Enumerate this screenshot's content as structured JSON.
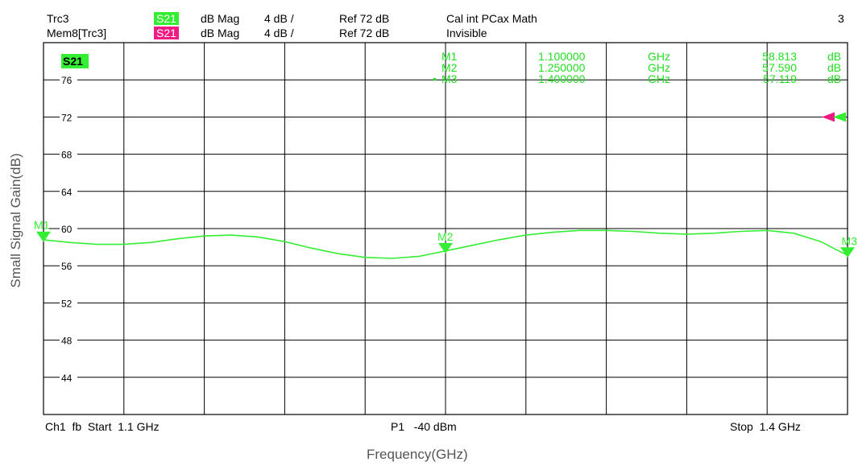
{
  "header": {
    "row1": {
      "trace": "Trc3",
      "param": "S21",
      "format": "dB Mag",
      "scale": "4 dB /",
      "ref": "Ref 72 dB",
      "status": "Cal int PCax Math",
      "channel_num": "3"
    },
    "row2": {
      "trace": "Mem8[Trc3]",
      "param": "S21",
      "format": "dB Mag",
      "scale": "4 dB /",
      "ref": "Ref 72 dB",
      "status": "Invisible"
    }
  },
  "colors": {
    "trace": "#33ee33",
    "memory": "#ee1b84",
    "grid": "#000000",
    "marker_text": "#22dd22"
  },
  "footer": {
    "left": "Ch1  fb  Start  1.1 GHz",
    "center": "P1   -40 dBm",
    "right": "Stop  1.4 GHz"
  },
  "chart_data": {
    "type": "line",
    "trace_label": "S21",
    "ylabel": "Small Signal Gain(dB)",
    "xlabel": "Frequency(GHz)",
    "xlim": [
      1.1,
      1.4
    ],
    "ylim": [
      40,
      80
    ],
    "yticks": [
      76,
      72,
      68,
      64,
      60,
      56,
      52,
      48,
      44
    ],
    "ref_level": 72,
    "grid": true,
    "series": [
      {
        "x": [
          1.1,
          1.11,
          1.12,
          1.13,
          1.14,
          1.15,
          1.16,
          1.17,
          1.18,
          1.19,
          1.2,
          1.21,
          1.22,
          1.23,
          1.24,
          1.25,
          1.26,
          1.27,
          1.28,
          1.29,
          1.3,
          1.31,
          1.32,
          1.33,
          1.34,
          1.35,
          1.36,
          1.37,
          1.38,
          1.39,
          1.4
        ],
        "values": [
          58.8,
          58.5,
          58.3,
          58.3,
          58.5,
          58.9,
          59.2,
          59.3,
          59.1,
          58.6,
          57.9,
          57.3,
          56.9,
          56.8,
          57.0,
          57.59,
          58.2,
          58.8,
          59.3,
          59.6,
          59.8,
          59.8,
          59.7,
          59.5,
          59.4,
          59.5,
          59.7,
          59.8,
          59.5,
          58.6,
          57.12
        ]
      }
    ],
    "markers": [
      {
        "id": "M1",
        "freq": "1.100000",
        "unit": "GHz",
        "value": "58.813",
        "value_unit": "dB",
        "x": 1.1,
        "y": 58.813,
        "active": false
      },
      {
        "id": "M2",
        "freq": "1.250000",
        "unit": "GHz",
        "value": "57.590",
        "value_unit": "dB",
        "x": 1.25,
        "y": 57.59,
        "active": false
      },
      {
        "id": "M3",
        "freq": "1.400000",
        "unit": "GHz",
        "value": "57.119",
        "value_unit": "dB",
        "x": 1.4,
        "y": 57.119,
        "active": true
      }
    ]
  }
}
